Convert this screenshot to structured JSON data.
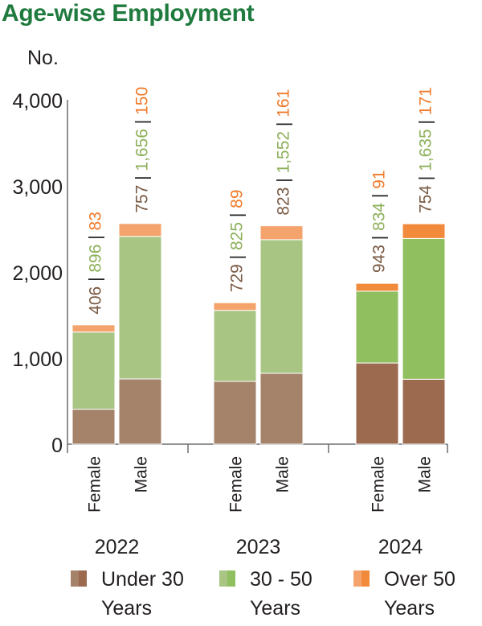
{
  "title": "Age-wise Employment",
  "chart_data": {
    "type": "bar",
    "stacked": true,
    "title": "Age-wise Employment",
    "ylabel": "No.",
    "xlabel": "",
    "ylim": [
      0,
      4000
    ],
    "yticks": [
      0,
      1000,
      2000,
      3000,
      4000
    ],
    "ytick_labels": [
      "0",
      "1,000",
      "2,000",
      "3,000",
      "4,000"
    ],
    "groups": [
      "2022",
      "2023",
      "2024"
    ],
    "categories": [
      "Female",
      "Male"
    ],
    "series": [
      {
        "name": "Under 30 Years",
        "color": "#a5826a",
        "color_2024": "#9b6a4f",
        "values": [
          [
            406,
            757
          ],
          [
            729,
            823
          ],
          [
            943,
            754
          ]
        ]
      },
      {
        "name": "30 - 50 Years",
        "color": "#a8c584",
        "color_2024": "#8fbf5e",
        "values": [
          [
            896,
            1656
          ],
          [
            825,
            1552
          ],
          [
            834,
            1635
          ]
        ]
      },
      {
        "name": "Over 50 Years",
        "color": "#f4a36c",
        "color_2024": "#f28a3c",
        "values": [
          [
            83,
            150
          ],
          [
            89,
            161
          ],
          [
            91,
            171
          ]
        ]
      }
    ],
    "data_labels": [
      [
        "406",
        "896",
        "83"
      ],
      [
        "757",
        "1,656",
        "150"
      ],
      [
        "729",
        "825",
        "89"
      ],
      [
        "823",
        "1,552",
        "161"
      ],
      [
        "943",
        "834",
        "91"
      ],
      [
        "754",
        "1,635",
        "171"
      ]
    ],
    "label_colors": [
      "#7a5a44",
      "#8db05a",
      "#f07a2a"
    ],
    "separator": " | ",
    "legend_position": "bottom"
  },
  "legend": [
    {
      "label": "Under 30\nYears",
      "color": "#a5826a",
      "color_dark": "#9b6a4f"
    },
    {
      "label": "30 - 50\nYears",
      "color": "#a8c584",
      "color_dark": "#8fbf5e"
    },
    {
      "label": "Over 50\nYears",
      "color": "#f4a36c",
      "color_dark": "#f28a3c"
    }
  ]
}
